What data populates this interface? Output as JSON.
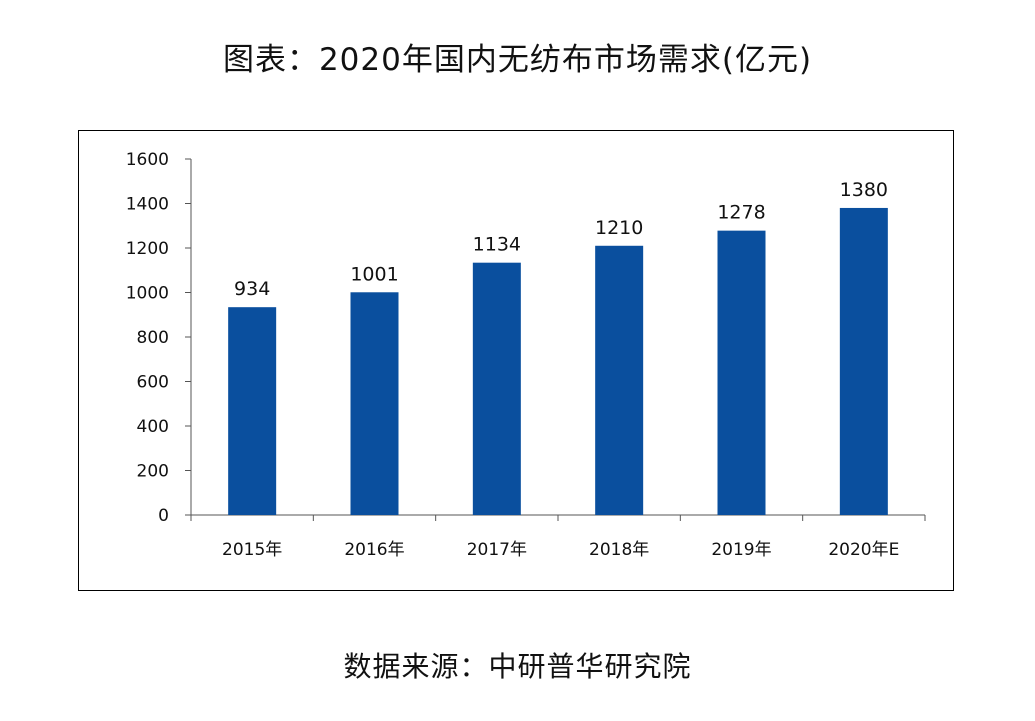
{
  "title": "图表：2020年国内无纺布市场需求(亿元)",
  "source": "数据来源：中研普华研究院",
  "colors": {
    "bar": "#0a4f9e",
    "axis": "#555555"
  },
  "chart_data": {
    "type": "bar",
    "categories": [
      "2015年",
      "2016年",
      "2017年",
      "2018年",
      "2019年",
      "2020年E"
    ],
    "values": [
      934,
      1001,
      1134,
      1210,
      1278,
      1380
    ],
    "ylim": [
      0,
      1600
    ],
    "yticks": [
      0,
      200,
      400,
      600,
      800,
      1000,
      1200,
      1400,
      1600
    ],
    "grid": false
  }
}
